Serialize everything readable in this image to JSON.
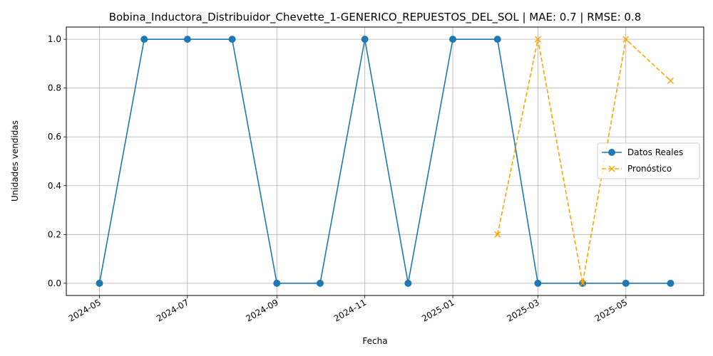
{
  "chart_data": {
    "type": "line",
    "title": "Bobina_Inductora_Distribuidor_Chevette_1-GENERICO_REPUESTOS_DEL_SOL | MAE: 0.7 | RMSE: 0.8",
    "xlabel": "Fecha",
    "ylabel": "Unidades vendidas",
    "x_type": "date",
    "xlim": [
      "2024-04-08",
      "2025-06-24"
    ],
    "ylim": [
      -0.05,
      1.05
    ],
    "x_ticks": [
      {
        "date": "2024-05-01",
        "label": "2024-05"
      },
      {
        "date": "2024-07-01",
        "label": "2024-07"
      },
      {
        "date": "2024-09-01",
        "label": "2024-09"
      },
      {
        "date": "2024-11-01",
        "label": "2024-11"
      },
      {
        "date": "2025-01-01",
        "label": "2025-01"
      },
      {
        "date": "2025-03-01",
        "label": "2025-03"
      },
      {
        "date": "2025-05-01",
        "label": "2025-05"
      }
    ],
    "y_ticks": [
      0.0,
      0.2,
      0.4,
      0.6,
      0.8,
      1.0
    ],
    "y_tick_labels": [
      "0.0",
      "0.2",
      "0.4",
      "0.6",
      "0.8",
      "1.0"
    ],
    "grid": true,
    "legend_position": "center-right",
    "series": [
      {
        "name": "Datos Reales",
        "color": "#1f77b4",
        "line_style": "solid",
        "marker": "circle",
        "points": [
          {
            "x": "2024-05-01",
            "y": 0
          },
          {
            "x": "2024-06-01",
            "y": 1
          },
          {
            "x": "2024-07-01",
            "y": 1
          },
          {
            "x": "2024-08-01",
            "y": 1
          },
          {
            "x": "2024-09-01",
            "y": 0
          },
          {
            "x": "2024-10-01",
            "y": 0
          },
          {
            "x": "2024-11-01",
            "y": 1
          },
          {
            "x": "2024-12-01",
            "y": 0
          },
          {
            "x": "2025-01-01",
            "y": 1
          },
          {
            "x": "2025-02-01",
            "y": 1
          },
          {
            "x": "2025-03-01",
            "y": 0
          },
          {
            "x": "2025-04-01",
            "y": 0
          },
          {
            "x": "2025-05-01",
            "y": 0
          },
          {
            "x": "2025-06-01",
            "y": 0
          }
        ]
      },
      {
        "name": "Pronóstico",
        "color": "#ffa500",
        "line_style": "dashed",
        "marker": "x",
        "points": [
          {
            "x": "2025-02-01",
            "y": 0.2
          },
          {
            "x": "2025-03-01",
            "y": 1.0
          },
          {
            "x": "2025-04-01",
            "y": 0.0
          },
          {
            "x": "2025-05-01",
            "y": 1.0
          },
          {
            "x": "2025-06-01",
            "y": 0.83
          }
        ]
      }
    ]
  }
}
